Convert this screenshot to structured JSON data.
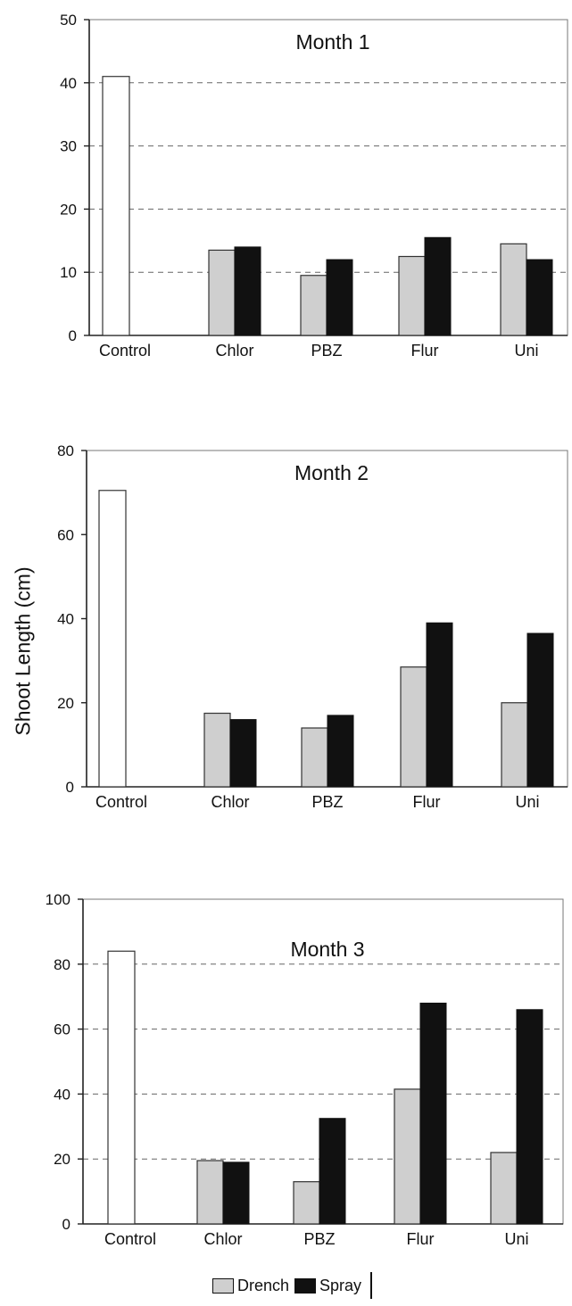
{
  "colors": {
    "control": "#ffffff",
    "drench": "#cfcfcf",
    "spray": "#111111",
    "axis": "#222222",
    "grid": "#666666"
  },
  "chart_data": [
    {
      "type": "bar",
      "title": "Month 1",
      "categories": [
        "Control",
        "Chlor",
        "PBZ",
        "Flur",
        "Uni"
      ],
      "control_value": 41,
      "series": [
        {
          "name": "Drench",
          "values": [
            null,
            13.5,
            9.5,
            12.5,
            14.5
          ]
        },
        {
          "name": "Spray",
          "values": [
            null,
            14,
            12,
            15.5,
            12
          ]
        }
      ],
      "ylim": [
        0,
        50
      ],
      "yticks": [
        0,
        10,
        20,
        30,
        40,
        50
      ],
      "gridlines": [
        10,
        20,
        30,
        40
      ],
      "grid": true
    },
    {
      "type": "bar",
      "title": "Month 2",
      "categories": [
        "Control",
        "Chlor",
        "PBZ",
        "Flur",
        "Uni"
      ],
      "control_value": 70.5,
      "series": [
        {
          "name": "Drench",
          "values": [
            null,
            17.5,
            14,
            28.5,
            20
          ]
        },
        {
          "name": "Spray",
          "values": [
            null,
            16,
            17,
            39,
            36.5
          ]
        }
      ],
      "ylim": [
        0,
        80
      ],
      "yticks": [
        0,
        20,
        40,
        60,
        80
      ],
      "gridlines": [],
      "grid": false
    },
    {
      "type": "bar",
      "title": "Month 3",
      "categories": [
        "Control",
        "Chlor",
        "PBZ",
        "Flur",
        "Uni"
      ],
      "control_value": 84,
      "series": [
        {
          "name": "Drench",
          "values": [
            null,
            19.5,
            13,
            41.5,
            22
          ]
        },
        {
          "name": "Spray",
          "values": [
            null,
            19,
            32.5,
            68,
            66
          ]
        }
      ],
      "ylim": [
        0,
        100
      ],
      "yticks": [
        0,
        20,
        40,
        60,
        80,
        100
      ],
      "gridlines": [
        20,
        40,
        60,
        80
      ],
      "grid": true
    }
  ],
  "ylabel": "Shoot Length (cm)",
  "legend": {
    "drench_label": "Drench",
    "spray_label": "Spray",
    "placement": "bottom-center"
  }
}
